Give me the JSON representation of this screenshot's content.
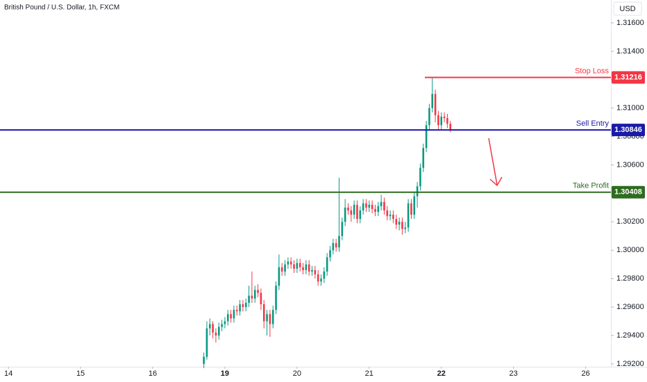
{
  "chart_data": {
    "type": "candlestick",
    "title": "British Pound / U.S. Dollar, 1h, FXCM",
    "currency": "USD",
    "up_color": "#089981",
    "down_color": "#f23645",
    "xlim": [
      -2.8,
      200.4
    ],
    "xticks": [
      {
        "value": 0,
        "label": "14"
      },
      {
        "value": 24,
        "label": "15"
      },
      {
        "value": 48,
        "label": "16"
      },
      {
        "value": 72,
        "label": "19"
      },
      {
        "value": 96,
        "label": "20"
      },
      {
        "value": 120,
        "label": "21"
      },
      {
        "value": 144,
        "label": "22"
      },
      {
        "value": 168,
        "label": "23"
      },
      {
        "value": 192,
        "label": "26"
      }
    ],
    "ylim": [
      1.2918,
      1.31761
    ],
    "yticks": [
      {
        "value": 1.316,
        "label": "1.31600"
      },
      {
        "value": 1.314,
        "label": "1.31400"
      },
      {
        "value": 1.312,
        "label": "1.31200"
      },
      {
        "value": 1.31,
        "label": "1.31000"
      },
      {
        "value": 1.308,
        "label": "1.30800"
      },
      {
        "value": 1.306,
        "label": "1.30600"
      },
      {
        "value": 1.304,
        "label": "1.30400"
      },
      {
        "value": 1.302,
        "label": "1.30200"
      },
      {
        "value": 1.3,
        "label": "1.30000"
      },
      {
        "value": 1.298,
        "label": "1.29800"
      },
      {
        "value": 1.296,
        "label": "1.29600"
      },
      {
        "value": 1.294,
        "label": "1.29400"
      },
      {
        "value": 1.292,
        "label": "1.29200"
      }
    ],
    "levels": [
      {
        "name": "Stop Loss",
        "value": 1.31216,
        "color": "#f23645"
      },
      {
        "name": "Sell Entry",
        "value": 1.30846,
        "color": "#1a1aa6"
      },
      {
        "name": "Take Profit",
        "value": 1.30408,
        "color": "#2e6b1f"
      }
    ],
    "x": [
      65,
      66,
      67,
      68,
      69,
      70,
      71,
      72,
      73,
      74,
      75,
      76,
      77,
      78,
      79,
      80,
      81,
      82,
      83,
      84,
      85,
      86,
      87,
      88,
      89,
      90,
      91,
      92,
      93,
      94,
      95,
      96,
      97,
      98,
      99,
      100,
      101,
      102,
      103,
      104,
      105,
      106,
      107,
      108,
      109,
      110,
      111,
      112,
      113,
      114,
      115,
      116,
      117,
      118,
      119,
      120,
      121,
      122,
      123,
      124,
      125,
      126,
      127,
      128,
      129,
      130,
      131,
      132,
      133,
      134,
      135,
      136,
      137,
      138,
      139,
      140,
      141,
      142,
      143,
      144,
      145,
      146,
      147
    ],
    "open": [
      1.292,
      1.2925,
      1.2945,
      1.2948,
      1.2942,
      1.294,
      1.2946,
      1.2948,
      1.295,
      1.2955,
      1.2952,
      1.2958,
      1.2957,
      1.2962,
      1.296,
      1.2963,
      1.2968,
      1.2966,
      1.2972,
      1.297,
      1.2962,
      1.295,
      1.2955,
      1.2948,
      1.2958,
      1.2975,
      1.2988,
      1.2985,
      1.299,
      1.2992,
      1.299,
      1.2987,
      1.2991,
      1.2988,
      1.2986,
      1.299,
      1.2985,
      1.2986,
      1.2983,
      1.2978,
      1.298,
      1.2985,
      1.2995,
      1.3,
      1.3005,
      1.3002,
      1.301,
      1.302,
      1.303,
      1.3028,
      1.3025,
      1.3032,
      1.3022,
      1.3028,
      1.3033,
      1.303,
      1.3032,
      1.3029,
      1.3027,
      1.3031,
      1.3034,
      1.3028,
      1.3024,
      1.3025,
      1.3022,
      1.3018,
      1.302,
      1.3015,
      1.3016,
      1.3033,
      1.3025,
      1.3038,
      1.3045,
      1.3058,
      1.3072,
      1.3088,
      1.31,
      1.311,
      1.3095,
      1.3088,
      1.3094,
      1.3093,
      1.3089
    ],
    "high": [
      1.2928,
      1.295,
      1.2952,
      1.295,
      1.2945,
      1.2949,
      1.2951,
      1.2953,
      1.2958,
      1.2958,
      1.2961,
      1.2961,
      1.2965,
      1.2965,
      1.2966,
      1.2975,
      1.2985,
      1.2975,
      1.2976,
      1.2973,
      1.2965,
      1.2958,
      1.2958,
      1.2961,
      1.2978,
      1.2997,
      1.2991,
      1.2993,
      1.2995,
      1.2995,
      1.2993,
      1.2994,
      1.2994,
      1.2991,
      1.2993,
      1.2993,
      1.2989,
      1.2989,
      1.2986,
      1.2983,
      1.2988,
      1.2998,
      1.3003,
      1.3008,
      1.3008,
      1.3051,
      1.3023,
      1.3036,
      1.3033,
      1.3031,
      1.3035,
      1.3035,
      1.3031,
      1.3036,
      1.3036,
      1.3035,
      1.3035,
      1.3032,
      1.3034,
      1.3039,
      1.3037,
      1.3031,
      1.3028,
      1.3028,
      1.3025,
      1.3023,
      1.3023,
      1.302,
      1.3036,
      1.3036,
      1.3041,
      1.3048,
      1.3061,
      1.3075,
      1.3091,
      1.3103,
      1.3121,
      1.3113,
      1.3098,
      1.3097,
      1.3097,
      1.3096,
      1.3091
    ],
    "low": [
      1.2917,
      1.2923,
      1.294,
      1.2938,
      1.2935,
      1.2937,
      1.2943,
      1.2945,
      1.2947,
      1.2949,
      1.2949,
      1.2954,
      1.2954,
      1.2957,
      1.2957,
      1.296,
      1.2963,
      1.2963,
      1.2967,
      1.2958,
      1.2945,
      1.294,
      1.2939,
      1.2945,
      1.2955,
      1.2972,
      1.2982,
      1.2982,
      1.2987,
      1.2987,
      1.2984,
      1.2984,
      1.2985,
      1.2983,
      1.2983,
      1.2982,
      1.2982,
      1.298,
      1.2975,
      1.2975,
      1.2977,
      1.2982,
      1.2992,
      1.2997,
      1.2999,
      1.2999,
      1.3007,
      1.3017,
      1.3025,
      1.302,
      1.3022,
      1.3019,
      1.3019,
      1.3025,
      1.3027,
      1.3027,
      1.3026,
      1.3024,
      1.3024,
      1.3028,
      1.3025,
      1.3021,
      1.3021,
      1.3019,
      1.3015,
      1.3014,
      1.3011,
      1.3012,
      1.3013,
      1.3022,
      1.3022,
      1.303,
      1.3042,
      1.3055,
      1.3069,
      1.3085,
      1.3097,
      1.309,
      1.3085,
      1.3085,
      1.309,
      1.3086,
      1.3083
    ],
    "close": [
      1.2925,
      1.2945,
      1.2948,
      1.2942,
      1.294,
      1.2946,
      1.2948,
      1.295,
      1.2955,
      1.2952,
      1.2958,
      1.2957,
      1.2962,
      1.296,
      1.2963,
      1.2968,
      1.2966,
      1.2972,
      1.297,
      1.2962,
      1.295,
      1.2955,
      1.2948,
      1.2958,
      1.2975,
      1.2988,
      1.2985,
      1.299,
      1.2992,
      1.299,
      1.2987,
      1.2991,
      1.2988,
      1.2986,
      1.299,
      1.2985,
      1.2986,
      1.2983,
      1.2978,
      1.298,
      1.2985,
      1.2995,
      1.3,
      1.3005,
      1.3002,
      1.301,
      1.302,
      1.303,
      1.3028,
      1.3025,
      1.3032,
      1.3022,
      1.3028,
      1.3033,
      1.303,
      1.3032,
      1.3029,
      1.3027,
      1.3031,
      1.3034,
      1.3028,
      1.3024,
      1.3025,
      1.3022,
      1.3018,
      1.302,
      1.3015,
      1.3016,
      1.3033,
      1.3025,
      1.3038,
      1.3045,
      1.3058,
      1.3072,
      1.3088,
      1.31,
      1.311,
      1.3095,
      1.3088,
      1.3094,
      1.3093,
      1.3089,
      1.3085
    ]
  }
}
